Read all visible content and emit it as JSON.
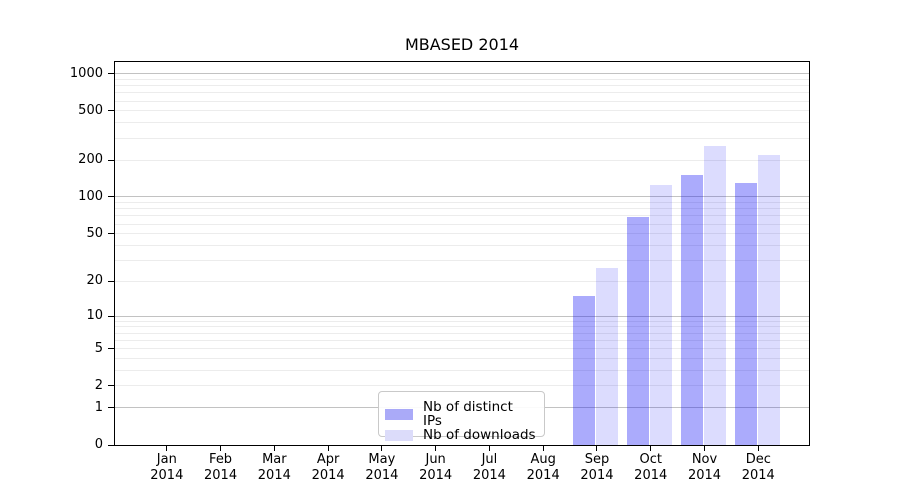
{
  "figure": {
    "title": "MBASED 2014",
    "background": "#ffffff"
  },
  "chart_data": {
    "type": "bar",
    "title": "MBASED 2014",
    "categories": [
      "Jan",
      "Feb",
      "Mar",
      "Apr",
      "May",
      "Jun",
      "Jul",
      "Aug",
      "Sep",
      "Oct",
      "Nov",
      "Dec"
    ],
    "x_year": "2014",
    "series": [
      {
        "name": "Nb of distinct IPs",
        "swatch": "#aaaaf8",
        "fill": "rgba(15,15,245,0.35)",
        "values": [
          0,
          0,
          0,
          0,
          0,
          0,
          0,
          0,
          15,
          68,
          152,
          131
        ]
      },
      {
        "name": "Nb of downloads",
        "swatch": "#dcdcfa",
        "fill": "rgba(15,15,245,0.145)",
        "values": [
          0,
          0,
          0,
          0,
          0,
          0,
          0,
          0,
          26,
          125,
          262,
          220
        ]
      }
    ],
    "xlabel": "",
    "ylabel": "",
    "y_scale": "log1p",
    "ylim": [
      0,
      1240
    ],
    "y_ticks": [
      0,
      1,
      2,
      5,
      10,
      20,
      50,
      100,
      200,
      500,
      1000
    ],
    "y_major_gridlines": [
      1,
      10,
      100,
      1000
    ],
    "y_minor_gridlines": [
      2,
      3,
      4,
      5,
      6,
      7,
      8,
      9,
      20,
      30,
      40,
      50,
      60,
      70,
      80,
      90,
      200,
      300,
      400,
      500,
      600,
      700,
      800,
      900
    ],
    "grid": true,
    "legend_position": "lower center",
    "legend": [
      "Nb of distinct IPs",
      "Nb of downloads"
    ]
  },
  "colors": {
    "bar_dark": "#aaaaf8",
    "bar_light": "#dcdcfa",
    "grid_minor": "#ececec",
    "grid_major": "#c2c2c2",
    "axis": "#000000",
    "legend_border": "#c9c9c9"
  }
}
